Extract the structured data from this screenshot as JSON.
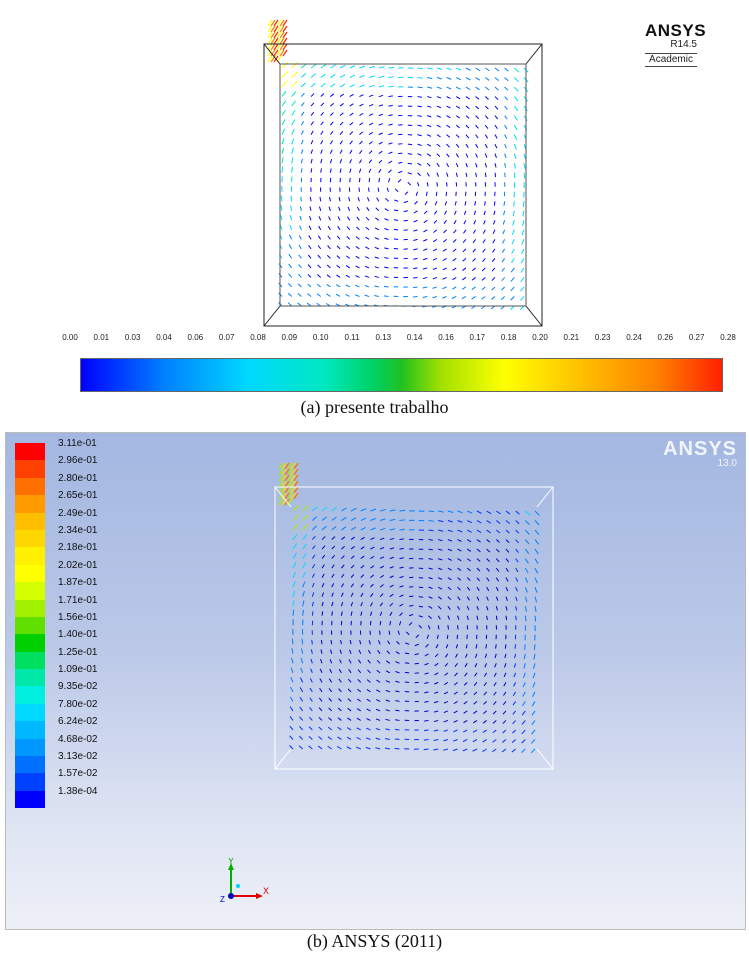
{
  "figure_a": {
    "caption": "(a) presente trabalho",
    "logo": {
      "brand": "ANSYS",
      "release": "R14.5",
      "edition": "Academic"
    },
    "colorbar": {
      "ticks": [
        "0.00",
        "0.01",
        "0.03",
        "0.04",
        "0.06",
        "0.07",
        "0.08",
        "0.09",
        "0.10",
        "0.11",
        "0.13",
        "0.14",
        "0.16",
        "0.17",
        "0.18",
        "0.20",
        "0.21",
        "0.23",
        "0.24",
        "0.26",
        "0.27",
        "0.28"
      ],
      "colors": [
        "#0000ff",
        "#0080ff",
        "#00d8ff",
        "#00e8c0",
        "#20c020",
        "#ffff00",
        "#ff8000",
        "#ff2000"
      ]
    }
  },
  "figure_b": {
    "caption": "(b) ANSYS (2011)",
    "logo": {
      "brand": "ANSYS",
      "release": "13.0"
    },
    "legend": {
      "labels": [
        "3.11e-01",
        "2.96e-01",
        "2.80e-01",
        "2.65e-01",
        "2.49e-01",
        "2.34e-01",
        "2.18e-01",
        "2.02e-01",
        "1.87e-01",
        "1.71e-01",
        "1.56e-01",
        "1.40e-01",
        "1.25e-01",
        "1.09e-01",
        "9.35e-02",
        "7.80e-02",
        "6.24e-02",
        "4.68e-02",
        "3.13e-02",
        "1.57e-02",
        "1.38e-04"
      ],
      "colors": [
        "#ff0000",
        "#ff4000",
        "#ff7000",
        "#ff9a00",
        "#ffbf00",
        "#ffd700",
        "#ffef00",
        "#ffff00",
        "#d4ff00",
        "#a0f000",
        "#60e000",
        "#00d000",
        "#00e060",
        "#00e8a8",
        "#00f0e0",
        "#00d8ff",
        "#00b8ff",
        "#0098ff",
        "#0070ff",
        "#0040ff",
        "#0000ff"
      ]
    },
    "axes_triad": {
      "y": "Y",
      "x": "X",
      "z": "Z"
    }
  }
}
